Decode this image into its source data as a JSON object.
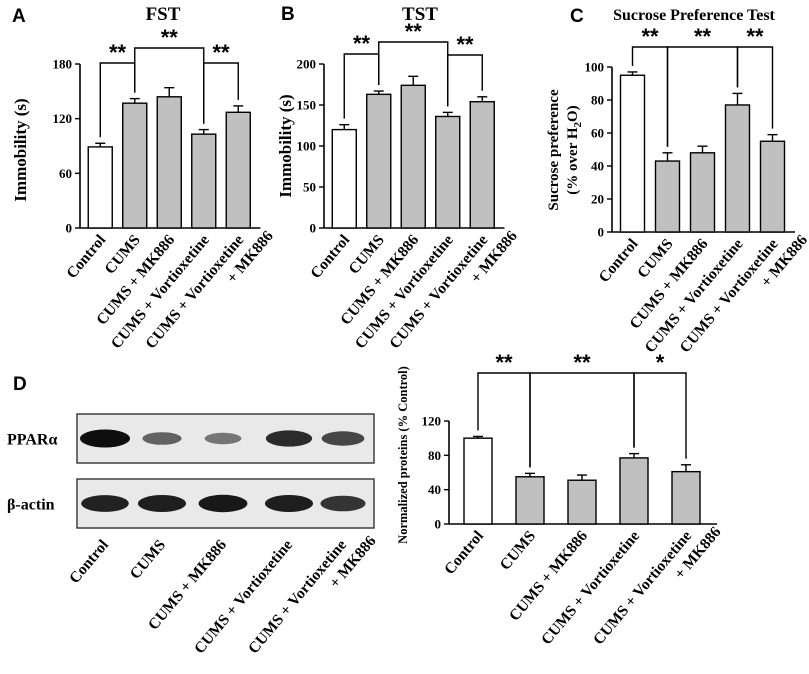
{
  "chart_data": [
    {
      "panel_label": "A",
      "type": "bar",
      "title": "FST",
      "ylabel": "Immobility (s)",
      "ylim": [
        0,
        180
      ],
      "yticks": [
        "0",
        "60",
        "120",
        "180"
      ],
      "categories": [
        [
          "Control"
        ],
        [
          "CUMS"
        ],
        [
          "CUMS + MK886"
        ],
        [
          "CUMS + Vortioxetine"
        ],
        [
          "CUMS + Vortioxetine",
          "+ MK886"
        ]
      ],
      "values": [
        89,
        137,
        144,
        103,
        127
      ],
      "errors": [
        4,
        5,
        10,
        5,
        7
      ],
      "fills": [
        "#ffffff",
        "#c0c0c0",
        "#c0c0c0",
        "#c0c0c0",
        "#c0c0c0"
      ],
      "significance": [
        {
          "from": 0,
          "to": 1,
          "label": "**"
        },
        {
          "from": 1,
          "to": 3,
          "label": "**"
        },
        {
          "from": 3,
          "to": 4,
          "label": "**"
        }
      ]
    },
    {
      "panel_label": "B",
      "type": "bar",
      "title": "TST",
      "ylabel": "Immobility (s)",
      "ylim": [
        0,
        200
      ],
      "yticks": [
        "0",
        "50",
        "100",
        "150",
        "200"
      ],
      "categories": [
        [
          "Control"
        ],
        [
          "CUMS"
        ],
        [
          "CUMS + MK886"
        ],
        [
          "CUMS + Vortioxetine"
        ],
        [
          "CUMS + Vortioxetine",
          "+ MK886"
        ]
      ],
      "values": [
        120,
        163,
        174,
        136,
        154
      ],
      "errors": [
        6,
        4,
        11,
        5,
        6
      ],
      "fills": [
        "#ffffff",
        "#c0c0c0",
        "#c0c0c0",
        "#c0c0c0",
        "#c0c0c0"
      ],
      "significance": [
        {
          "from": 0,
          "to": 1,
          "label": "**"
        },
        {
          "from": 1,
          "to": 3,
          "label": "**"
        },
        {
          "from": 3,
          "to": 4,
          "label": "**"
        }
      ]
    },
    {
      "panel_label": "C",
      "type": "bar",
      "title": "Sucrose Preference Test",
      "ylabel_lines": [
        "Sucrose preference",
        "(% over H",
        "2",
        "O)"
      ],
      "ylim": [
        0,
        100
      ],
      "yticks": [
        "0",
        "20",
        "40",
        "60",
        "80",
        "100"
      ],
      "categories": [
        [
          "Control"
        ],
        [
          "CUMS"
        ],
        [
          "CUMS + MK886"
        ],
        [
          "CUMS + Vortioxetine"
        ],
        [
          "CUMS + Vortioxetine",
          "+ MK886"
        ]
      ],
      "values": [
        95,
        43,
        48,
        77,
        55
      ],
      "errors": [
        2,
        5,
        4,
        7,
        4
      ],
      "fills": [
        "#ffffff",
        "#c0c0c0",
        "#c0c0c0",
        "#c0c0c0",
        "#c0c0c0"
      ],
      "significance": [
        {
          "from": 0,
          "to": 1,
          "label": "**"
        },
        {
          "from": 1,
          "to": 3,
          "label": "**"
        },
        {
          "from": 3,
          "to": 4,
          "label": "**"
        }
      ]
    },
    {
      "panel_label": "D",
      "type": "bar",
      "ylabel": "Normalized proteins (% Control)",
      "ylim": [
        0,
        120
      ],
      "yticks": [
        "0",
        "40",
        "80",
        "120"
      ],
      "categories": [
        [
          "Control"
        ],
        [
          "CUMS"
        ],
        [
          "CUMS + MK886"
        ],
        [
          "CUMS + Vortioxetine"
        ],
        [
          "CUMS + Vortioxetine",
          "+ MK886"
        ]
      ],
      "values": [
        100,
        55,
        51,
        77,
        61
      ],
      "errors": [
        2,
        4,
        6,
        5,
        8
      ],
      "fills": [
        "#ffffff",
        "#c0c0c0",
        "#c0c0c0",
        "#c0c0c0",
        "#c0c0c0"
      ],
      "significance": [
        {
          "from": 0,
          "to": 1,
          "label": "**"
        },
        {
          "from": 1,
          "to": 3,
          "label": "**"
        },
        {
          "from": 3,
          "to": 4,
          "label": "*"
        }
      ]
    }
  ],
  "blot": {
    "rows": [
      "PPARα",
      "β-actin"
    ],
    "lanes": [
      [
        "Control"
      ],
      [
        "CUMS"
      ],
      [
        "CUMS + MK886"
      ],
      [
        "CUMS + Vortioxetine"
      ],
      [
        "CUMS + Vortioxetine",
        "+ MK886"
      ]
    ],
    "band_intensity": {
      "PPARα": [
        1.0,
        0.55,
        0.45,
        0.85,
        0.7
      ],
      "β-actin": [
        0.9,
        0.92,
        0.95,
        0.92,
        0.8
      ]
    }
  }
}
